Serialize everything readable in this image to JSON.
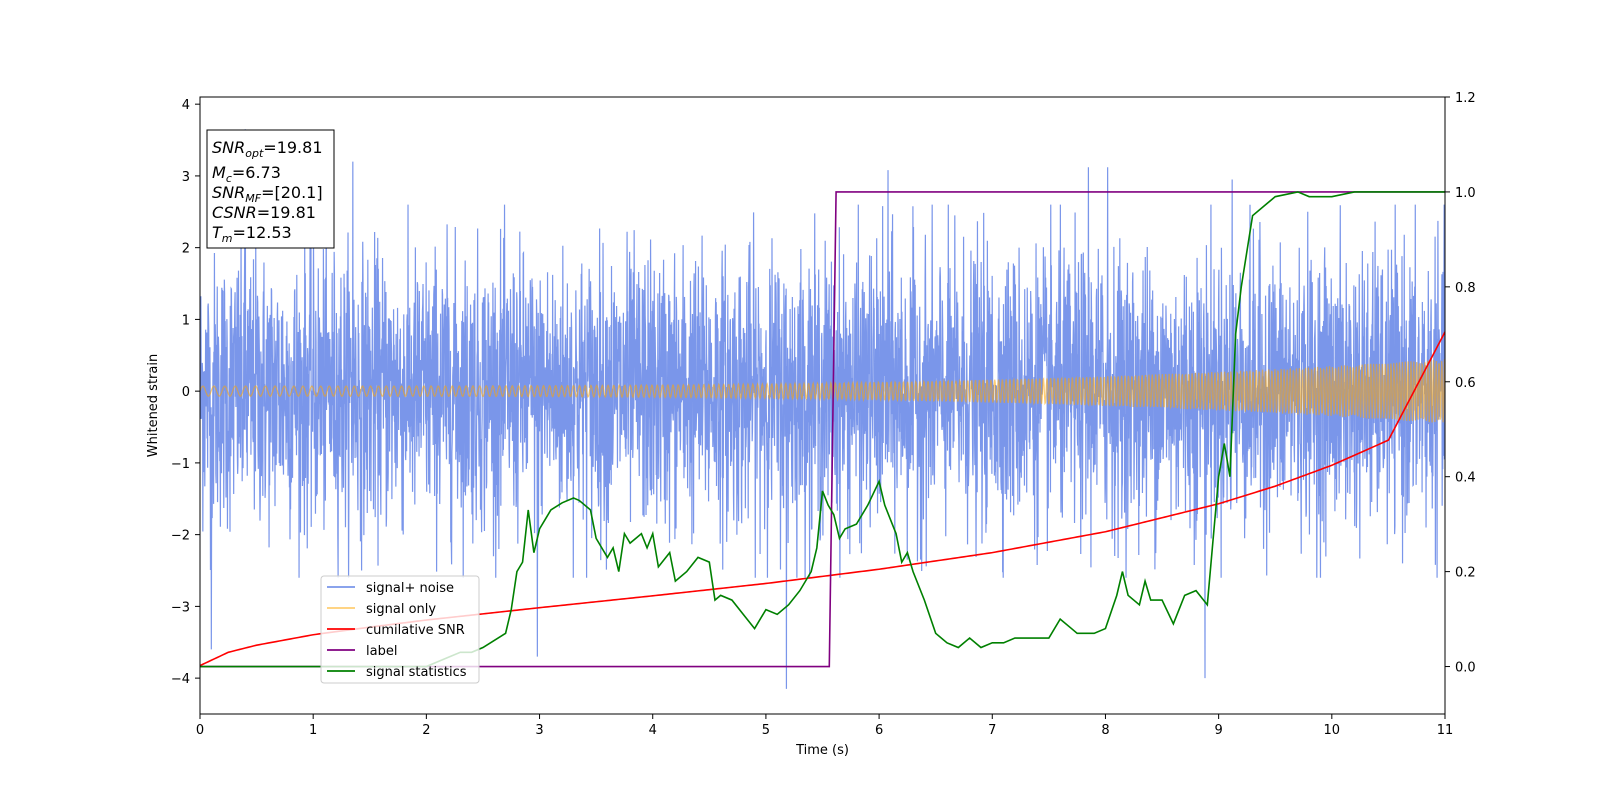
{
  "chart_data": {
    "type": "line",
    "xlabel": "Time (s)",
    "ylabel_left": "Whitened strain",
    "ylabel_right": "",
    "xlim": [
      0,
      11
    ],
    "ylim_left": [
      -4.5,
      4.1
    ],
    "ylim_right": [
      -0.1,
      1.2
    ],
    "x_ticks": [
      0,
      1,
      2,
      3,
      4,
      5,
      6,
      7,
      8,
      9,
      10,
      11
    ],
    "y_ticks_left": [
      4,
      3,
      2,
      1,
      0,
      -1,
      -2,
      -3,
      -4
    ],
    "y_ticks_left_labels": [
      "4",
      "3",
      "2",
      "1",
      "0",
      "−1",
      "−2",
      "−3",
      "−4"
    ],
    "y_ticks_right": [
      1.2,
      1.0,
      0.8,
      0.6,
      0.4,
      0.2,
      0.0
    ],
    "y_ticks_right_labels": [
      "1.2",
      "1.0",
      "0.8",
      "0.6",
      "0.4",
      "0.2",
      "0.0"
    ],
    "grid": false,
    "legend_placement": "lower-left",
    "info_box": {
      "snr_opt": "19.81",
      "mc": "6.73",
      "snr_mf": "[20.1]",
      "csnr": "19.81",
      "tm": "12.53"
    },
    "series": [
      {
        "name": "signal+ noise",
        "axis": "left",
        "color": "#4169e1",
        "alpha": 0.7,
        "kind": "noise",
        "envelope_sigma": 1.0,
        "extremes": [
          [
            0.4,
            3.65
          ],
          [
            0.1,
            -3.6
          ],
          [
            5.18,
            -4.15
          ],
          [
            8.88,
            -4.0
          ],
          [
            2.98,
            -3.7
          ],
          [
            1.35,
            3.2
          ],
          [
            7.85,
            3.12
          ],
          [
            8.02,
            3.12
          ],
          [
            6.08,
            3.08
          ],
          [
            9.12,
            2.95
          ]
        ]
      },
      {
        "name": "signal only",
        "axis": "left",
        "color": "#ffa500",
        "alpha": 0.55,
        "kind": "chirp",
        "amplitude_start": 0.07,
        "amplitude_end": 0.45
      },
      {
        "name": "cumilative SNR",
        "axis": "right",
        "color": "#ff0000",
        "x": [
          0,
          0.25,
          0.5,
          1,
          1.5,
          2,
          3,
          4,
          5,
          6,
          7,
          8,
          9,
          9.5,
          10,
          10.5,
          11
        ],
        "y": [
          0.002,
          0.03,
          0.045,
          0.067,
          0.083,
          0.098,
          0.124,
          0.149,
          0.175,
          0.205,
          0.24,
          0.284,
          0.343,
          0.38,
          0.424,
          0.477,
          0.705
        ]
      },
      {
        "name": "label",
        "axis": "right",
        "color": "#800080",
        "x": [
          0,
          5.56,
          5.62,
          11
        ],
        "y": [
          0.0,
          0.0,
          1.0,
          1.0
        ]
      },
      {
        "name": "signal statistics",
        "axis": "right",
        "color": "#008000",
        "x": [
          0,
          0.5,
          1,
          1.5,
          2,
          2.1,
          2.2,
          2.3,
          2.4,
          2.5,
          2.6,
          2.7,
          2.75,
          2.8,
          2.85,
          2.9,
          2.95,
          3.0,
          3.05,
          3.1,
          3.2,
          3.3,
          3.35,
          3.45,
          3.5,
          3.6,
          3.65,
          3.7,
          3.75,
          3.8,
          3.9,
          3.95,
          4.0,
          4.05,
          4.15,
          4.2,
          4.3,
          4.4,
          4.5,
          4.55,
          4.6,
          4.7,
          4.8,
          4.9,
          5.0,
          5.1,
          5.2,
          5.3,
          5.4,
          5.45,
          5.5,
          5.55,
          5.6,
          5.65,
          5.7,
          5.8,
          5.9,
          6.0,
          6.05,
          6.1,
          6.15,
          6.2,
          6.25,
          6.3,
          6.4,
          6.5,
          6.6,
          6.7,
          6.8,
          6.9,
          7.0,
          7.1,
          7.2,
          7.3,
          7.4,
          7.5,
          7.6,
          7.7,
          7.75,
          7.8,
          7.9,
          8.0,
          8.1,
          8.15,
          8.2,
          8.3,
          8.35,
          8.4,
          8.5,
          8.6,
          8.7,
          8.8,
          8.9,
          9.0,
          9.05,
          9.1,
          9.15,
          9.2,
          9.3,
          9.4,
          9.5,
          9.6,
          9.7,
          9.8,
          10.0,
          10.2,
          10.4,
          11.0
        ],
        "y": [
          0.0,
          0.0,
          0.0,
          0.0,
          0.0,
          0.01,
          0.02,
          0.03,
          0.03,
          0.04,
          0.055,
          0.07,
          0.12,
          0.2,
          0.22,
          0.33,
          0.24,
          0.29,
          0.31,
          0.33,
          0.345,
          0.355,
          0.35,
          0.33,
          0.27,
          0.23,
          0.25,
          0.2,
          0.28,
          0.26,
          0.28,
          0.25,
          0.28,
          0.21,
          0.24,
          0.18,
          0.2,
          0.23,
          0.22,
          0.14,
          0.15,
          0.14,
          0.11,
          0.08,
          0.12,
          0.11,
          0.13,
          0.16,
          0.2,
          0.25,
          0.37,
          0.34,
          0.32,
          0.27,
          0.29,
          0.3,
          0.34,
          0.39,
          0.34,
          0.31,
          0.28,
          0.22,
          0.24,
          0.2,
          0.14,
          0.07,
          0.05,
          0.04,
          0.06,
          0.04,
          0.05,
          0.05,
          0.06,
          0.06,
          0.06,
          0.06,
          0.1,
          0.08,
          0.07,
          0.07,
          0.07,
          0.08,
          0.15,
          0.2,
          0.15,
          0.13,
          0.18,
          0.14,
          0.14,
          0.09,
          0.15,
          0.16,
          0.13,
          0.4,
          0.47,
          0.4,
          0.7,
          0.8,
          0.95,
          0.97,
          0.99,
          0.995,
          1.0,
          0.99,
          0.99,
          1.0,
          1.0,
          1.0
        ]
      }
    ]
  }
}
